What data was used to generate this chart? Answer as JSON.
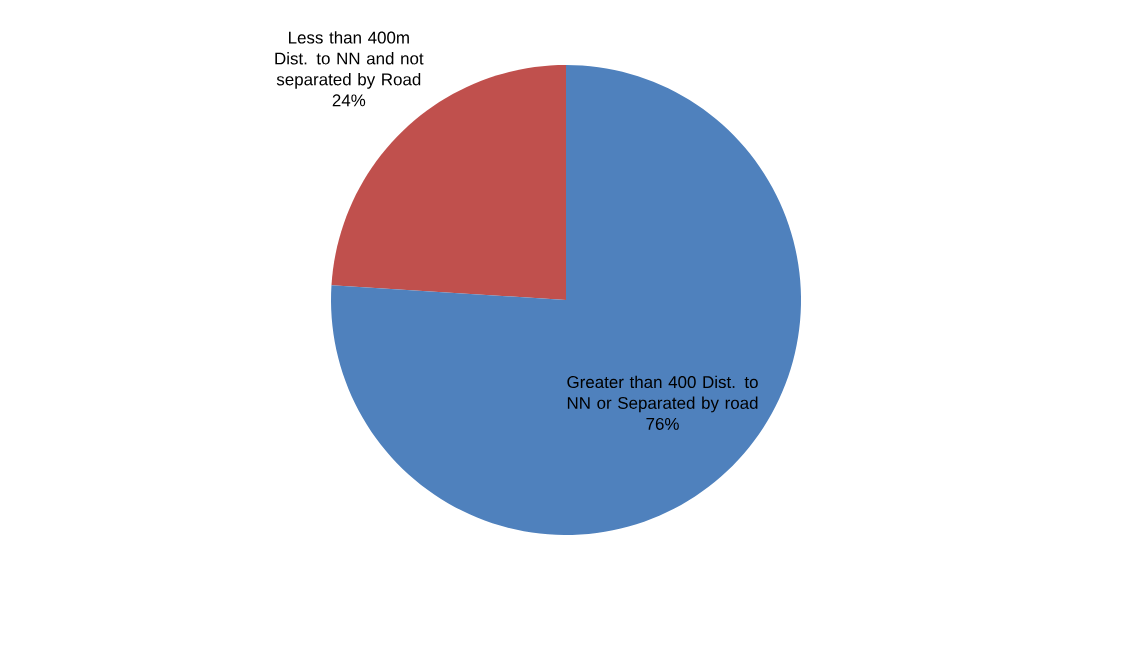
{
  "chart_data": {
    "type": "pie",
    "categories": [
      "Less than 400m Dist. to NN and not separated by Road",
      "Greater than 400 Dist. to NN or Separated by road"
    ],
    "values": [
      24,
      76
    ],
    "value_labels": [
      "24%",
      "76%"
    ],
    "colors": [
      "#c0504d",
      "#4f81bd"
    ]
  }
}
